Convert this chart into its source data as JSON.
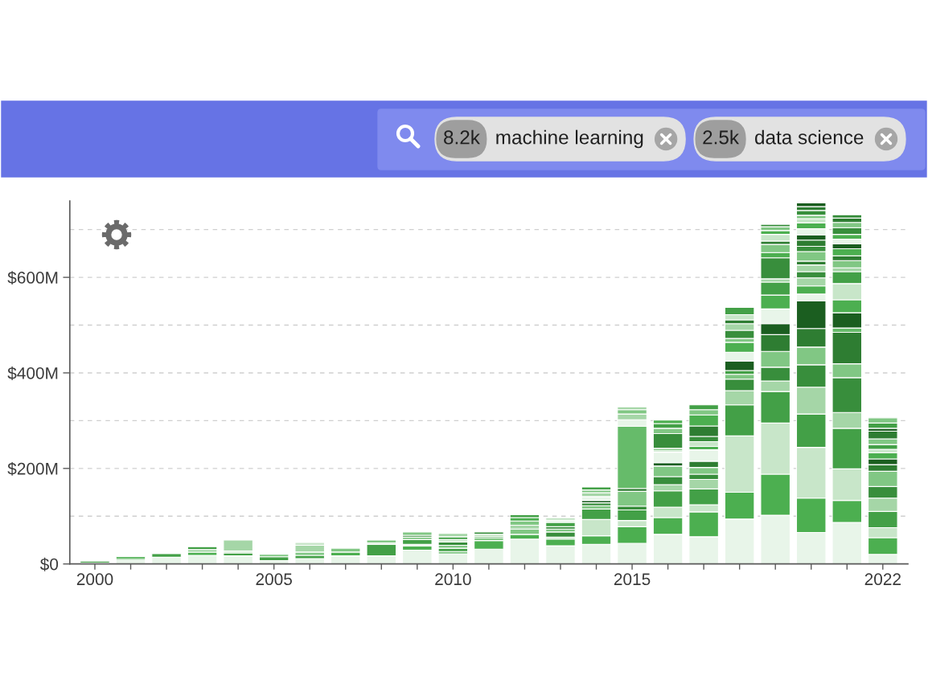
{
  "chart_data": {
    "type": "bar",
    "stacked": true,
    "grid": "y",
    "annotations": [
      "8.2k",
      "machine learning",
      "2.5k",
      "data science"
    ],
    "x": [
      2000,
      2001,
      2002,
      2003,
      2004,
      2005,
      2006,
      2007,
      2008,
      2009,
      2010,
      2011,
      2012,
      2013,
      2014,
      2015,
      2016,
      2017,
      2018,
      2019,
      2020,
      2021,
      2022
    ],
    "xlim": [
      1999.3,
      2022.7
    ],
    "xticks": [
      2000,
      {
        "value": 2001,
        "label": null
      },
      {
        "value": 2002,
        "label": null
      },
      {
        "value": 2003,
        "label": null
      },
      {
        "value": 2004,
        "label": null
      },
      2005,
      {
        "value": 2006,
        "label": null
      },
      {
        "value": 2007,
        "label": null
      },
      {
        "value": 2008,
        "label": null
      },
      {
        "value": 2009,
        "label": null
      },
      2010,
      {
        "value": 2011,
        "label": null
      },
      {
        "value": 2012,
        "label": null
      },
      {
        "value": 2013,
        "label": null
      },
      {
        "value": 2014,
        "label": null
      },
      2015,
      {
        "value": 2016,
        "label": null
      },
      {
        "value": 2017,
        "label": null
      },
      {
        "value": 2018,
        "label": null
      },
      {
        "value": 2019,
        "label": null
      },
      {
        "value": 2020,
        "label": null
      },
      {
        "value": 2021,
        "label": null
      },
      2022
    ],
    "ylim": [
      0,
      760
    ],
    "yticks": [
      {
        "value": 0,
        "label": "$0"
      },
      {
        "value": 100,
        "label": null
      },
      {
        "value": 200,
        "label": "$200M"
      },
      {
        "value": 300,
        "label": null
      },
      {
        "value": 400,
        "label": "$400M"
      },
      {
        "value": 500,
        "label": null
      },
      {
        "value": 600,
        "label": "$600M"
      },
      {
        "value": 700,
        "label": null
      }
    ],
    "series": [
      {
        "color": "#e8f5e9",
        "values": [
          2,
          7,
          14,
          18,
          17,
          7,
          11,
          17,
          17,
          29,
          21,
          31,
          52,
          38,
          41,
          43,
          62,
          57,
          94,
          102,
          66,
          87,
          20
        ]
      },
      {
        "values": [
          4,
          3,
          8,
          7,
          6,
          8,
          7,
          8,
          24,
          9,
          5,
          18,
          10,
          14,
          18,
          35,
          35,
          52,
          56,
          86,
          72,
          46,
          35
        ],
        "colors": [
          "#43a047",
          "#81c784",
          "#43a047",
          "#4caf50",
          "#43a047",
          "#43a047",
          "#43a047",
          "#4caf50",
          "#43a047",
          "#4caf50",
          "#81c784",
          "#4caf50",
          "#4caf50",
          "#4caf50",
          "#4caf50",
          "#4caf50",
          "#4caf50",
          "#4caf50",
          "#4caf50",
          "#4caf50",
          "#4caf50",
          "#4caf50",
          "#4caf50"
        ]
      },
      {
        "values": [
          null,
          5,
          2,
          5,
          4,
          5,
          7,
          8,
          3,
          3,
          7,
          6,
          11,
          4,
          34,
          13,
          22,
          15,
          118,
          107,
          106,
          66,
          21
        ],
        "colors": [
          null,
          "#4caf50",
          "#81c784",
          "#81c784",
          "#c8e6c9",
          "#81c784",
          "#81c784",
          "#81c784",
          "#c8e6c9",
          "#c8e6c9",
          "#43a047",
          "#81c784",
          "#81c784",
          "#c8e6c9",
          "#c8e6c9",
          "#c8e6c9",
          "#c8e6c9",
          "#c8e6c9",
          "#c8e6c9",
          "#c8e6c9",
          "#c8e6c9",
          "#c8e6c9",
          "#c8e6c9"
        ]
      },
      {
        "values": [
          null,
          null,
          null,
          6,
          23,
          null,
          14,
          null,
          6,
          10,
          6,
          3,
          8,
          11,
          22,
          22,
          34,
          33,
          65,
          66,
          70,
          85,
          34
        ],
        "colors": [
          null,
          null,
          null,
          "#43a047",
          "#a5d6a7",
          null,
          "#a5d6a7",
          null,
          "#81c784",
          "#43a047",
          "#81c784",
          "#43a047",
          "#a5d6a7",
          "#388e3c",
          "#43a047",
          "#43a047",
          "#43a047",
          "#43a047",
          "#43a047",
          "#43a047",
          "#43a047",
          "#43a047",
          "#43a047"
        ]
      },
      {
        "values": [
          null,
          null,
          null,
          null,
          null,
          null,
          6,
          null,
          null,
          5,
          7,
          4,
          9,
          6,
          7,
          8,
          13,
          20,
          30,
          22,
          56,
          33,
          28
        ],
        "colors": [
          null,
          null,
          null,
          null,
          null,
          null,
          "#c8e6c9",
          null,
          null,
          "#81c784",
          "#388e3c",
          "#a5d6a7",
          "#81c784",
          "#81c784",
          "#81c784",
          "#388e3c",
          "#a5d6a7",
          "#a5d6a7",
          "#a5d6a7",
          "#a5d6a7",
          "#a5d6a7",
          "#a5d6a7",
          "#a5d6a7"
        ]
      },
      {
        "values": [
          null,
          null,
          null,
          null,
          null,
          null,
          null,
          null,
          null,
          4,
          5,
          5,
          7,
          5,
          6,
          31,
          17,
          11,
          24,
          29,
          47,
          73,
          24
        ],
        "colors": [
          null,
          null,
          null,
          null,
          null,
          null,
          null,
          null,
          null,
          "#388e3c",
          "#c8e6c9",
          "#388e3c",
          "#4caf50",
          "#388e3c",
          "#388e3c",
          "#81c784",
          "#388e3c",
          "#388e3c",
          "#388e3c",
          "#388e3c",
          "#388e3c",
          "#388e3c",
          "#388e3c"
        ]
      },
      {
        "values": [
          null,
          null,
          null,
          null,
          null,
          null,
          null,
          null,
          null,
          7,
          6,
          null,
          6,
          9,
          5,
          6,
          22,
          14,
          10,
          33,
          37,
          29,
          32
        ],
        "colors": [
          null,
          null,
          null,
          null,
          null,
          null,
          null,
          null,
          null,
          "#81c784",
          "#43a047",
          null,
          "#43a047",
          "#43a047",
          "#1b5e20",
          "#2e7d32",
          "#81c784",
          "#81c784",
          "#81c784",
          "#81c784",
          "#81c784",
          "#81c784",
          "#81c784"
        ]
      },
      {
        "values": [
          null,
          null,
          null,
          null,
          null,
          null,
          null,
          null,
          null,
          null,
          7,
          null,
          null,
          5,
          8,
          130,
          7,
          13,
          8,
          35,
          39,
          66,
          14
        ],
        "colors": [
          null,
          null,
          null,
          null,
          null,
          null,
          null,
          null,
          null,
          null,
          "#a5d6a7",
          null,
          null,
          "#e8f5e9",
          "#e8f5e9",
          "#66bb6a",
          "#1b5e20",
          "#2e7d32",
          "#43a047",
          "#2e7d32",
          "#2e7d32",
          "#2e7d32",
          "#2e7d32"
        ]
      },
      {
        "values": [
          null,
          null,
          null,
          null,
          null,
          null,
          null,
          null,
          null,
          null,
          null,
          null,
          null,
          4,
          8,
          14,
          22,
          24,
          20,
          23,
          58,
          9,
          12
        ],
        "colors": [
          null,
          null,
          null,
          null,
          null,
          null,
          null,
          null,
          null,
          null,
          null,
          null,
          null,
          "#a5d6a7",
          "#a5d6a7",
          "#e8f5e9",
          "#e8f5e9",
          "#e8f5e9",
          "#1b5e20",
          "#1b5e20",
          "#1b5e20",
          "#66bb6a",
          "#1b5e20"
        ]
      },
      {
        "values": [
          null,
          null,
          null,
          null,
          null,
          null,
          null,
          null,
          null,
          null,
          null,
          null,
          null,
          null,
          6,
          12,
          3,
          7,
          18,
          31,
          14,
          32,
          13
        ],
        "colors": [
          null,
          null,
          null,
          null,
          null,
          null,
          null,
          null,
          null,
          null,
          null,
          null,
          null,
          null,
          "#81c784",
          "#a5d6a7",
          "#4caf50",
          "#4caf50",
          "#e8f5e9",
          "#e8f5e9",
          "#e8f5e9",
          "#1b5e20",
          "#4caf50"
        ]
      },
      {
        "values": [
          null,
          null,
          null,
          null,
          null,
          null,
          null,
          null,
          null,
          null,
          null,
          null,
          null,
          null,
          6,
          9,
          5,
          10,
          21,
          29,
          17,
          27,
          7
        ],
        "colors": [
          null,
          null,
          null,
          null,
          null,
          null,
          null,
          null,
          null,
          null,
          null,
          null,
          null,
          null,
          "#43a047",
          "#81c784",
          "#81c784",
          "#c8e6c9",
          "#4caf50",
          "#4caf50",
          "#4caf50",
          "#4caf50",
          "#c8e6c9"
        ]
      },
      {
        "values": [
          null,
          null,
          null,
          null,
          null,
          null,
          null,
          null,
          null,
          null,
          null,
          null,
          null,
          null,
          null,
          6,
          31,
          11,
          8,
          27,
          17,
          34,
          10
        ],
        "colors": [
          null,
          null,
          null,
          null,
          null,
          null,
          null,
          null,
          null,
          null,
          null,
          null,
          null,
          null,
          null,
          "#a5d6a7",
          "#388e3c",
          "#388e3c",
          "#81c784",
          "#43a047",
          "#a5d6a7",
          "#c8e6c9",
          "#43a047"
        ]
      },
      {
        "values": [
          null,
          null,
          null,
          null,
          null,
          null,
          null,
          null,
          null,
          null,
          null,
          null,
          null,
          null,
          null,
          null,
          11,
          22,
          17,
          7,
          13,
          25,
          12
        ],
        "colors": [
          null,
          null,
          null,
          null,
          null,
          null,
          null,
          null,
          null,
          null,
          null,
          null,
          null,
          null,
          null,
          null,
          "#81c784",
          "#2e7d32",
          "#388e3c",
          "#a5d6a7",
          "#388e3c",
          "#43a047",
          "#81c784"
        ]
      },
      {
        "values": [
          null,
          null,
          null,
          null,
          null,
          null,
          null,
          null,
          null,
          null,
          null,
          null,
          null,
          null,
          null,
          null,
          10,
          23,
          14,
          44,
          14,
          8,
          16
        ],
        "colors": [
          null,
          null,
          null,
          null,
          null,
          null,
          null,
          null,
          null,
          null,
          null,
          null,
          null,
          null,
          null,
          null,
          "#43a047",
          "#4caf50",
          "#a5d6a7",
          "#388e3c",
          "#a5d6a7",
          "#a5d6a7",
          "#2e7d32"
        ]
      },
      {
        "values": [
          null,
          null,
          null,
          null,
          null,
          null,
          null,
          null,
          null,
          null,
          null,
          null,
          null,
          null,
          null,
          null,
          7,
          11,
          8,
          11,
          8,
          15,
          6
        ],
        "colors": [
          null,
          null,
          null,
          null,
          null,
          null,
          null,
          null,
          null,
          null,
          null,
          null,
          null,
          null,
          null,
          null,
          "#4caf50",
          "#81c784",
          "#2e7d32",
          "#4caf50",
          "#2e7d32",
          "#81c784",
          "#1b5e20"
        ]
      },
      {
        "values": [
          null,
          null,
          null,
          null,
          null,
          null,
          null,
          null,
          null,
          null,
          null,
          null,
          null,
          null,
          null,
          null,
          null,
          10,
          11,
          17,
          20,
          10,
          11
        ],
        "colors": [
          null,
          null,
          null,
          null,
          null,
          null,
          null,
          null,
          null,
          null,
          null,
          null,
          null,
          null,
          null,
          null,
          null,
          "#43a047",
          "#c8e6c9",
          "#81c784",
          "#81c784",
          "#2e7d32",
          "#43a047"
        ]
      },
      {
        "values": [
          null,
          null,
          null,
          null,
          null,
          null,
          null,
          null,
          null,
          null,
          null,
          null,
          null,
          null,
          null,
          null,
          null,
          null,
          15,
          7,
          11,
          15,
          11
        ],
        "colors": [
          null,
          null,
          null,
          null,
          null,
          null,
          null,
          null,
          null,
          null,
          null,
          null,
          null,
          null,
          null,
          null,
          null,
          null,
          "#43a047",
          "#2e7d32",
          "#388e3c",
          "#4caf50",
          "#81c784"
        ]
      },
      {
        "values": [
          null,
          null,
          null,
          null,
          null,
          null,
          null,
          null,
          null,
          null,
          null,
          null,
          null,
          null,
          null,
          null,
          null,
          null,
          null,
          14,
          13,
          10,
          null
        ],
        "colors": [
          null,
          null,
          null,
          null,
          null,
          null,
          null,
          null,
          null,
          null,
          null,
          null,
          null,
          null,
          null,
          null,
          null,
          null,
          null,
          "#c8e6c9",
          "#2e7d32",
          "#1b5e20",
          null
        ]
      },
      {
        "values": [
          null,
          null,
          null,
          null,
          null,
          null,
          null,
          null,
          null,
          null,
          null,
          null,
          null,
          null,
          null,
          null,
          null,
          null,
          null,
          8,
          11,
          10,
          null
        ],
        "colors": [
          null,
          null,
          null,
          null,
          null,
          null,
          null,
          null,
          null,
          null,
          null,
          null,
          null,
          null,
          null,
          null,
          null,
          null,
          null,
          "#4caf50",
          "#1b5e20",
          "#e8f5e9",
          null
        ]
      },
      {
        "values": [
          null,
          null,
          null,
          null,
          null,
          null,
          null,
          null,
          null,
          null,
          null,
          null,
          null,
          null,
          null,
          null,
          null,
          null,
          null,
          8,
          13,
          10,
          null
        ],
        "colors": [
          null,
          null,
          null,
          null,
          null,
          null,
          null,
          null,
          null,
          null,
          null,
          null,
          null,
          null,
          null,
          null,
          null,
          null,
          null,
          "#81c784",
          "#e8f5e9",
          "#4caf50",
          null
        ]
      },
      {
        "values": [
          null,
          null,
          null,
          null,
          null,
          null,
          null,
          null,
          null,
          null,
          null,
          null,
          null,
          null,
          null,
          null,
          null,
          null,
          null,
          5,
          12,
          14,
          null
        ],
        "colors": [
          null,
          null,
          null,
          null,
          null,
          null,
          null,
          null,
          null,
          null,
          null,
          null,
          null,
          null,
          null,
          null,
          null,
          null,
          null,
          "#388e3c",
          "#4caf50",
          "#388e3c",
          null
        ]
      },
      {
        "values": [
          null,
          null,
          null,
          null,
          null,
          null,
          null,
          null,
          null,
          null,
          null,
          null,
          null,
          null,
          null,
          null,
          null,
          null,
          null,
          null,
          9,
          11,
          null
        ],
        "colors": [
          null,
          null,
          null,
          null,
          null,
          null,
          null,
          null,
          null,
          null,
          null,
          null,
          null,
          null,
          null,
          null,
          null,
          null,
          null,
          null,
          "#c8e6c9",
          "#81c784",
          null
        ]
      },
      {
        "values": [
          null,
          null,
          null,
          null,
          null,
          null,
          null,
          null,
          null,
          null,
          null,
          null,
          null,
          null,
          null,
          null,
          null,
          null,
          null,
          null,
          7,
          9,
          null
        ],
        "colors": [
          null,
          null,
          null,
          null,
          null,
          null,
          null,
          null,
          null,
          null,
          null,
          null,
          null,
          null,
          null,
          null,
          null,
          null,
          null,
          null,
          "#81c784",
          "#2e7d32",
          null
        ]
      },
      {
        "values": [
          null,
          null,
          null,
          null,
          null,
          null,
          null,
          null,
          null,
          null,
          null,
          null,
          null,
          null,
          null,
          null,
          null,
          null,
          null,
          null,
          10,
          7,
          null
        ],
        "colors": [
          null,
          null,
          null,
          null,
          null,
          null,
          null,
          null,
          null,
          null,
          null,
          null,
          null,
          null,
          null,
          null,
          null,
          null,
          null,
          null,
          "#388e3c",
          "#388e3c",
          null
        ]
      },
      {
        "values": [
          null,
          null,
          null,
          null,
          null,
          null,
          null,
          null,
          null,
          null,
          null,
          null,
          null,
          null,
          null,
          null,
          null,
          null,
          null,
          null,
          8,
          null,
          null
        ],
        "colors": [
          null,
          null,
          null,
          null,
          null,
          null,
          null,
          null,
          null,
          null,
          null,
          null,
          null,
          null,
          null,
          null,
          null,
          null,
          null,
          null,
          "#2e7d32",
          null,
          null
        ]
      },
      {
        "values": [
          null,
          null,
          null,
          null,
          null,
          null,
          null,
          null,
          null,
          null,
          null,
          null,
          null,
          null,
          null,
          null,
          null,
          null,
          null,
          null,
          8,
          null,
          null
        ],
        "colors": [
          null,
          null,
          null,
          null,
          null,
          null,
          null,
          null,
          null,
          null,
          null,
          null,
          null,
          null,
          null,
          null,
          null,
          null,
          null,
          null,
          "#1b5e20",
          null,
          null
        ]
      }
    ]
  }
}
